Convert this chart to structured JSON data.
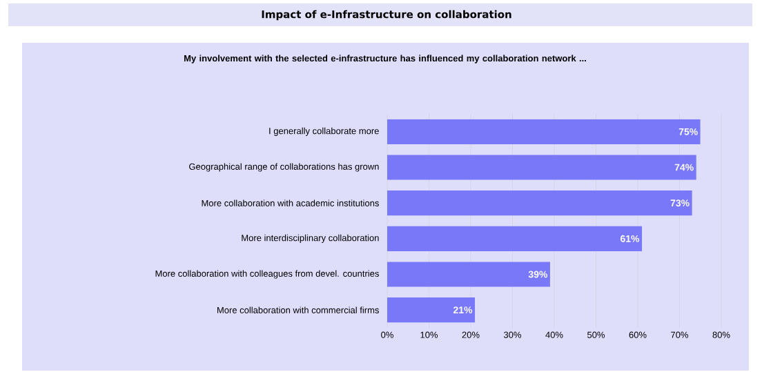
{
  "chart_data": {
    "type": "bar",
    "orientation": "horizontal",
    "title": "Impact of e-Infrastructure on collaboration",
    "subtitle": "My involvement with the selected e-infrastructure has influenced my collaboration network ...",
    "categories": [
      "I generally collaborate more",
      "Geographical range of collaborations has grown",
      "More collaboration with academic institutions",
      "More interdisciplinary collaboration",
      "More collaboration with colleagues from devel. countries",
      "More collaboration with commercial firms"
    ],
    "values": [
      75,
      74,
      73,
      61,
      39,
      21
    ],
    "value_labels": [
      "75%",
      "74%",
      "73%",
      "61%",
      "39%",
      "21%"
    ],
    "color": "#7878f8",
    "xlim": [
      0,
      80
    ],
    "xticks": [
      {
        "value": 0,
        "label": "0%"
      },
      {
        "value": 10,
        "label": "10%"
      },
      {
        "value": 20,
        "label": "20%"
      },
      {
        "value": 30,
        "label": "30%"
      },
      {
        "value": 40,
        "label": "40%"
      },
      {
        "value": 50,
        "label": "50%"
      },
      {
        "value": 60,
        "label": "60%"
      },
      {
        "value": 70,
        "label": "70%"
      },
      {
        "value": 80,
        "label": "80%"
      }
    ],
    "grid": "x"
  }
}
